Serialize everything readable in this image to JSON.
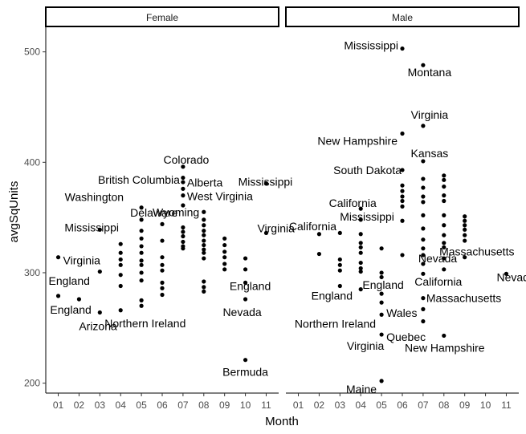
{
  "chart_data": {
    "type": "scatter",
    "xlabel": "Month",
    "ylabel": "avgSqUnits",
    "x_ticks": [
      "01",
      "02",
      "03",
      "04",
      "05",
      "06",
      "07",
      "08",
      "09",
      "10",
      "11"
    ],
    "y_ticks": [
      200,
      300,
      400,
      500
    ],
    "ylim": [
      191,
      523
    ],
    "grid": false,
    "point_color": "#000000",
    "panels": [
      {
        "name": "Female",
        "points": [
          [
            1,
            314
          ],
          [
            1,
            279
          ],
          [
            2,
            276
          ],
          [
            3,
            339
          ],
          [
            3,
            301
          ],
          [
            3,
            264
          ],
          [
            4,
            326
          ],
          [
            4,
            318
          ],
          [
            4,
            312
          ],
          [
            4,
            307
          ],
          [
            4,
            298
          ],
          [
            4,
            288
          ],
          [
            4,
            266
          ],
          [
            5,
            359
          ],
          [
            5,
            348
          ],
          [
            5,
            338
          ],
          [
            5,
            331
          ],
          [
            5,
            324
          ],
          [
            5,
            318
          ],
          [
            5,
            311
          ],
          [
            5,
            307
          ],
          [
            5,
            300
          ],
          [
            5,
            293
          ],
          [
            5,
            275
          ],
          [
            5,
            270
          ],
          [
            6,
            344
          ],
          [
            6,
            329
          ],
          [
            6,
            314
          ],
          [
            6,
            307
          ],
          [
            6,
            302
          ],
          [
            6,
            291
          ],
          [
            6,
            286
          ],
          [
            6,
            280
          ],
          [
            7,
            396
          ],
          [
            7,
            386
          ],
          [
            7,
            382
          ],
          [
            7,
            376
          ],
          [
            7,
            370
          ],
          [
            7,
            361
          ],
          [
            7,
            341
          ],
          [
            7,
            337
          ],
          [
            7,
            333
          ],
          [
            7,
            328
          ],
          [
            7,
            324
          ],
          [
            7,
            322
          ],
          [
            8,
            355
          ],
          [
            8,
            348
          ],
          [
            8,
            343
          ],
          [
            8,
            338
          ],
          [
            8,
            334
          ],
          [
            8,
            329
          ],
          [
            8,
            325
          ],
          [
            8,
            321
          ],
          [
            8,
            318
          ],
          [
            8,
            313
          ],
          [
            8,
            292
          ],
          [
            8,
            287
          ],
          [
            8,
            283
          ],
          [
            9,
            331
          ],
          [
            9,
            325
          ],
          [
            9,
            319
          ],
          [
            9,
            314
          ],
          [
            9,
            308
          ],
          [
            9,
            303
          ],
          [
            10,
            313
          ],
          [
            10,
            303
          ],
          [
            10,
            291
          ],
          [
            10,
            276
          ],
          [
            10,
            221
          ],
          [
            11,
            381
          ],
          [
            11,
            336
          ]
        ],
        "labels": [
          {
            "text": "Virginia",
            "x": 1,
            "y": 314
          },
          {
            "text": "England",
            "x": 1,
            "y": 279
          },
          {
            "text": "England",
            "x": 2,
            "y": 276
          },
          {
            "text": "Mississippi",
            "x": 3,
            "y": 339
          },
          {
            "text": "Arizona",
            "x": 3,
            "y": 264
          },
          {
            "text": "Washington",
            "x": 5,
            "y": 359
          },
          {
            "text": "Delaware",
            "x": 5,
            "y": 348
          },
          {
            "text": "Northern Ireland",
            "x": 4,
            "y": 266
          },
          {
            "text": "Wyoming",
            "x": 6,
            "y": 344
          },
          {
            "text": "Colorado",
            "x": 7,
            "y": 396
          },
          {
            "text": "British Columbia",
            "x": 7,
            "y": 382
          },
          {
            "text": "Alberta",
            "x": 7,
            "y": 386
          },
          {
            "text": "West Virginia",
            "x": 7,
            "y": 370
          },
          {
            "text": "Mississippi",
            "x": 11,
            "y": 381
          },
          {
            "text": "Virginia",
            "x": 11,
            "y": 336
          },
          {
            "text": "England",
            "x": 10,
            "y": 291
          },
          {
            "text": "Nevada",
            "x": 10,
            "y": 276
          },
          {
            "text": "Bermuda",
            "x": 10,
            "y": 221
          }
        ]
      },
      {
        "name": "Male",
        "points": [
          [
            2,
            335
          ],
          [
            2,
            317
          ],
          [
            3,
            336
          ],
          [
            3,
            312
          ],
          [
            3,
            307
          ],
          [
            3,
            302
          ],
          [
            3,
            288
          ],
          [
            4,
            358
          ],
          [
            4,
            348
          ],
          [
            4,
            335
          ],
          [
            4,
            327
          ],
          [
            4,
            323
          ],
          [
            4,
            318
          ],
          [
            4,
            309
          ],
          [
            4,
            304
          ],
          [
            4,
            301
          ],
          [
            4,
            285
          ],
          [
            5,
            322
          ],
          [
            5,
            300
          ],
          [
            5,
            296
          ],
          [
            5,
            281
          ],
          [
            5,
            273
          ],
          [
            5,
            262
          ],
          [
            5,
            244
          ],
          [
            5,
            202
          ],
          [
            6,
            503
          ],
          [
            6,
            426
          ],
          [
            6,
            393
          ],
          [
            6,
            379
          ],
          [
            6,
            374
          ],
          [
            6,
            369
          ],
          [
            6,
            365
          ],
          [
            6,
            360
          ],
          [
            6,
            347
          ],
          [
            6,
            316
          ],
          [
            7,
            488
          ],
          [
            7,
            433
          ],
          [
            7,
            401
          ],
          [
            7,
            385
          ],
          [
            7,
            377
          ],
          [
            7,
            369
          ],
          [
            7,
            364
          ],
          [
            7,
            352
          ],
          [
            7,
            340
          ],
          [
            7,
            330
          ],
          [
            7,
            322
          ],
          [
            7,
            316
          ],
          [
            7,
            308
          ],
          [
            7,
            299
          ],
          [
            7,
            277
          ],
          [
            7,
            267
          ],
          [
            7,
            256
          ],
          [
            8,
            388
          ],
          [
            8,
            384
          ],
          [
            8,
            378
          ],
          [
            8,
            370
          ],
          [
            8,
            365
          ],
          [
            8,
            352
          ],
          [
            8,
            343
          ],
          [
            8,
            334
          ],
          [
            8,
            327
          ],
          [
            8,
            323
          ],
          [
            8,
            313
          ],
          [
            8,
            303
          ],
          [
            8,
            243
          ],
          [
            9,
            351
          ],
          [
            9,
            347
          ],
          [
            9,
            343
          ],
          [
            9,
            339
          ],
          [
            9,
            334
          ],
          [
            9,
            329
          ],
          [
            9,
            314
          ],
          [
            11,
            299
          ]
        ],
        "labels": [
          {
            "text": "Mississippi",
            "x": 6,
            "y": 503
          },
          {
            "text": "Montana",
            "x": 7,
            "y": 488
          },
          {
            "text": "Virginia",
            "x": 7,
            "y": 433
          },
          {
            "text": "New Hampshire",
            "x": 6,
            "y": 426
          },
          {
            "text": "Kansas",
            "x": 7,
            "y": 401
          },
          {
            "text": "South Dakota",
            "x": 6,
            "y": 393
          },
          {
            "text": "California",
            "x": 4,
            "y": 358
          },
          {
            "text": "Mississippi",
            "x": 4,
            "y": 348
          },
          {
            "text": "California",
            "x": 2,
            "y": 335
          },
          {
            "text": "Massachusetts",
            "x": 8,
            "y": 323
          },
          {
            "text": "Nevada",
            "x": 7,
            "y": 316
          },
          {
            "text": "Nevada",
            "x": 11,
            "y": 299
          },
          {
            "text": "California",
            "x": 8,
            "y": 303
          },
          {
            "text": "England",
            "x": 3,
            "y": 288
          },
          {
            "text": "England",
            "x": 5,
            "y": 281
          },
          {
            "text": "Massachusetts",
            "x": 7,
            "y": 267
          },
          {
            "text": "Wales",
            "x": 5,
            "y": 273
          },
          {
            "text": "Northern Ireland",
            "x": 5,
            "y": 262
          },
          {
            "text": "Quebec",
            "x": 5,
            "y": 244
          },
          {
            "text": "Virginia",
            "x": 5,
            "y": 244
          },
          {
            "text": "New Hampshire",
            "x": 8,
            "y": 243
          },
          {
            "text": "Maine",
            "x": 5,
            "y": 202
          }
        ]
      }
    ]
  }
}
